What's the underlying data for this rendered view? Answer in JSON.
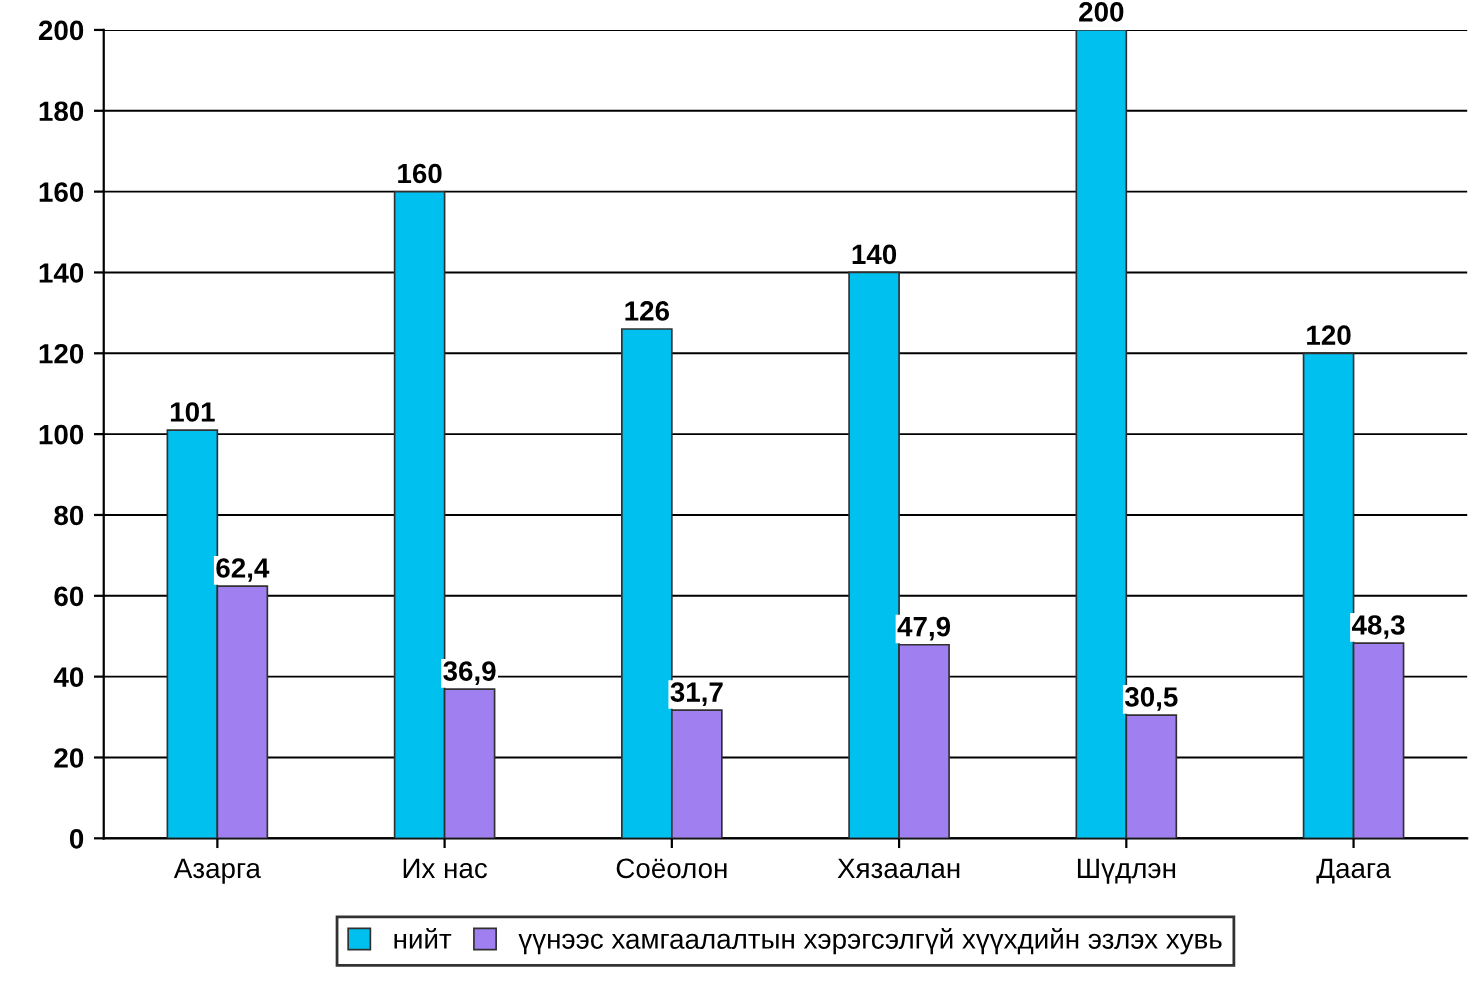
{
  "chart_data": {
    "type": "bar",
    "categories": [
      "Азарга",
      "Их нас",
      "Соёолон",
      "Хязаалан",
      "Шүдлэн",
      "Даага"
    ],
    "series": [
      {
        "name": "нийт",
        "color": "#00c0f0",
        "values": [
          101,
          160,
          126,
          140,
          200,
          120
        ],
        "value_labels": [
          "101",
          "160",
          "126",
          "140",
          "200",
          "120"
        ]
      },
      {
        "name": "үүнээс хамгаалалтын хэрэгсэлгүй хүүхдийн эзлэх хувь",
        "color": "#a080f0",
        "values": [
          62.4,
          36.9,
          31.7,
          47.9,
          30.5,
          48.3
        ],
        "value_labels": [
          "62,4",
          "36,9",
          "31,7",
          "47,9",
          "30,5",
          "48,3"
        ]
      }
    ],
    "ylim": [
      0,
      200
    ],
    "yticks": [
      0,
      20,
      40,
      60,
      80,
      100,
      120,
      140,
      160,
      180,
      200
    ],
    "grid": "y",
    "legend": "bottom"
  }
}
